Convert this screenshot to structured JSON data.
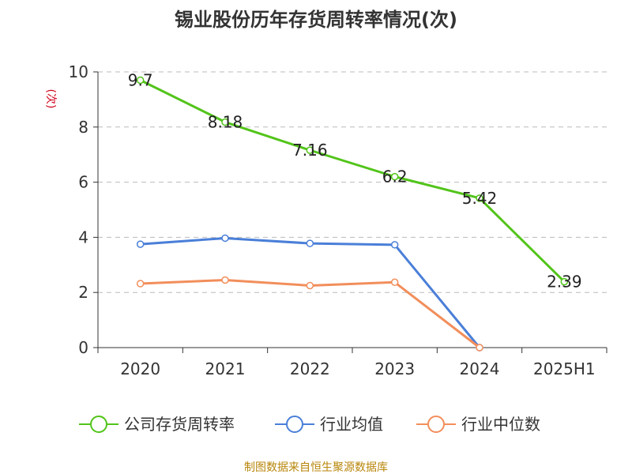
{
  "chart_data": {
    "type": "line",
    "title": "锡业股份历年存货周转率情况(次)",
    "ylabel": "(次)",
    "xlabel": "",
    "categories": [
      "2020",
      "2021",
      "2022",
      "2023",
      "2024",
      "2025H1"
    ],
    "ylim": [
      0,
      10
    ],
    "yticks": [
      "0",
      "2",
      "4",
      "6",
      "8",
      "10"
    ],
    "grid": true,
    "legend_position": "bottom",
    "series": [
      {
        "name": "公司存货周转率",
        "color": "#52c41a",
        "values": [
          9.7,
          8.18,
          7.16,
          6.2,
          5.42,
          2.39
        ],
        "labels": [
          "9.7",
          "8.18",
          "7.16",
          "6.2",
          "5.42",
          "2.39"
        ]
      },
      {
        "name": "行业均值",
        "color": "#4a7fd8",
        "values": [
          3.75,
          3.97,
          3.78,
          3.73,
          0,
          null
        ]
      },
      {
        "name": "行业中位数",
        "color": "#f28e5b",
        "values": [
          2.32,
          2.45,
          2.25,
          2.37,
          0,
          null
        ]
      }
    ],
    "ylabel_color": "#d0021b"
  },
  "source": {
    "text": "制图数据来自恒生聚源数据库",
    "color": "#b8860b"
  }
}
